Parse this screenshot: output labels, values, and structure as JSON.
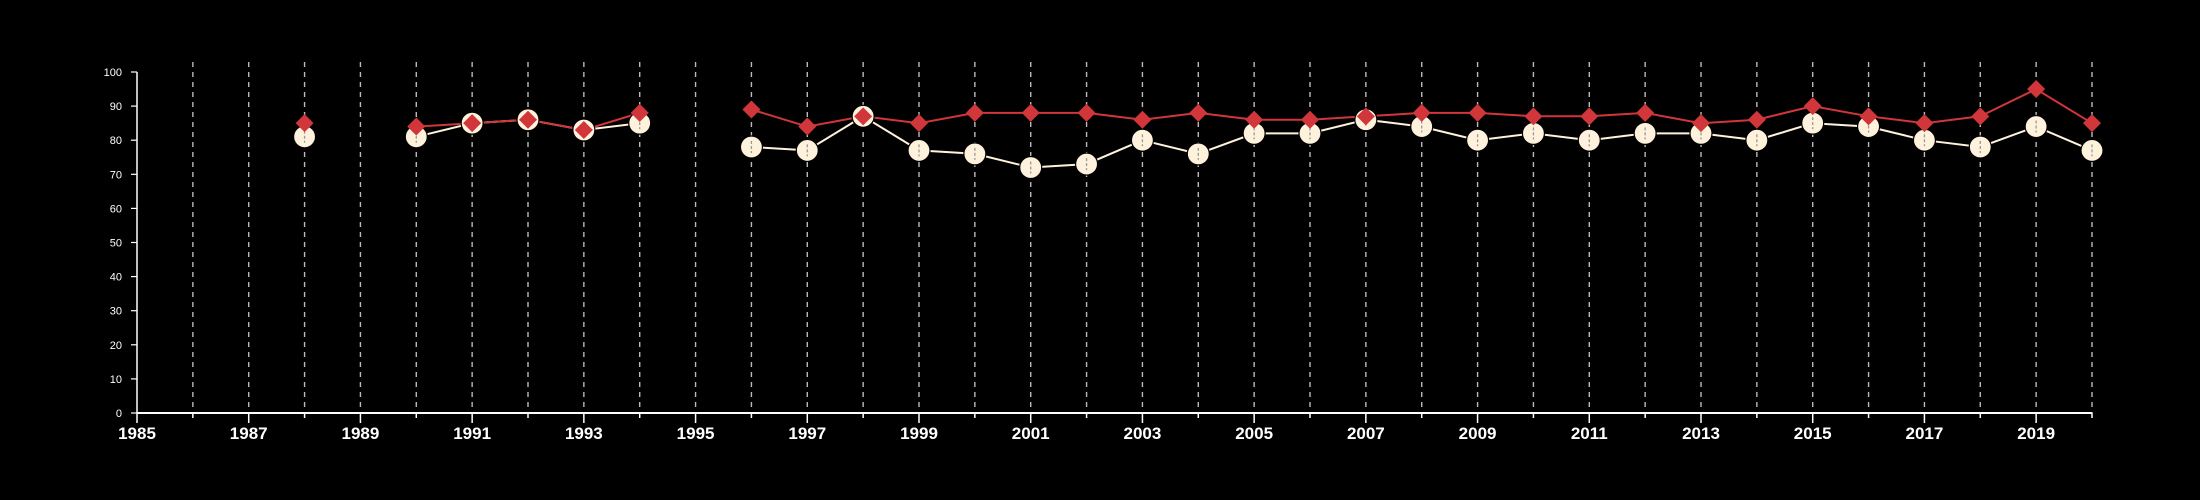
{
  "chart_data": {
    "type": "line",
    "title": "",
    "xlabel": "",
    "ylabel": "",
    "xlim": [
      1985,
      2020
    ],
    "ylim": [
      0,
      100
    ],
    "x_tick_labels": [
      "1985",
      "1987",
      "1989",
      "1991",
      "1993",
      "1995",
      "1997",
      "1999",
      "2001",
      "2003",
      "2005",
      "2007",
      "2009",
      "2011",
      "2013",
      "2015",
      "2017",
      "2019"
    ],
    "y_tick_labels": [
      "0",
      "10",
      "20",
      "30",
      "40",
      "50",
      "60",
      "70",
      "80",
      "90",
      "100"
    ],
    "grid": "vertical dashed lines at each year",
    "x": [
      1988,
      1990,
      1991,
      1992,
      1993,
      1994,
      1996,
      1997,
      1998,
      1999,
      2000,
      2001,
      2002,
      2003,
      2004,
      2005,
      2006,
      2007,
      2008,
      2009,
      2010,
      2011,
      2012,
      2013,
      2014,
      2015,
      2016,
      2017,
      2018,
      2019,
      2020
    ],
    "series": [
      {
        "marker": "diamond",
        "color": "#d0363a",
        "values": [
          85,
          84,
          85,
          86,
          83,
          88,
          89,
          84,
          87,
          85,
          88,
          88,
          88,
          86,
          88,
          86,
          86,
          87,
          88,
          88,
          87,
          87,
          88,
          85,
          86,
          90,
          87,
          85,
          87,
          95,
          85
        ]
      },
      {
        "marker": "circle",
        "color": "#fff2dc",
        "values": [
          81,
          81,
          85,
          86,
          83,
          85,
          78,
          77,
          87,
          77,
          76,
          72,
          73,
          80,
          76,
          82,
          82,
          86,
          84,
          80,
          82,
          80,
          82,
          82,
          80,
          85,
          84,
          80,
          78,
          84,
          77
        ]
      }
    ]
  },
  "colors": {
    "background": "#000000",
    "axis": "#ffffff",
    "grid": "#bbbbbb"
  }
}
